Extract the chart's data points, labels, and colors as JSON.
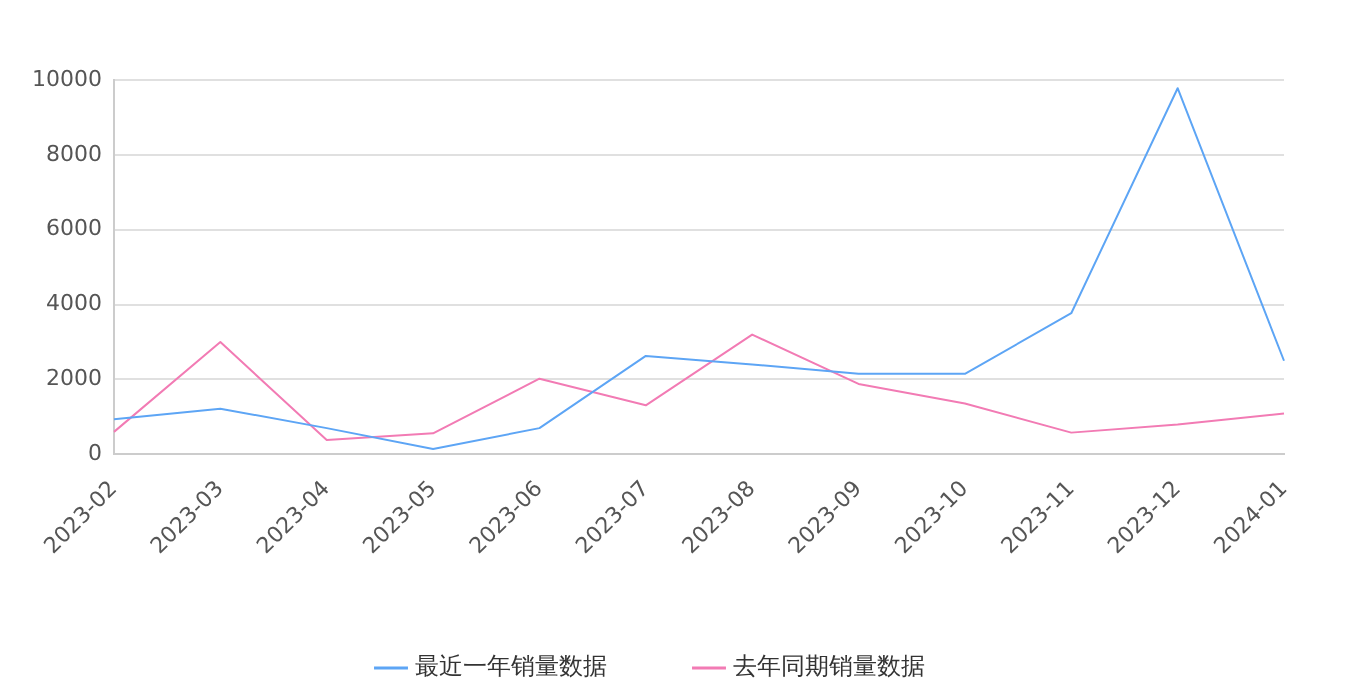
{
  "chart_data": {
    "type": "line",
    "categories": [
      "2023-02",
      "2023-03",
      "2023-04",
      "2023-05",
      "2023-06",
      "2023-07",
      "2023-08",
      "2023-09",
      "2023-10",
      "2023-11",
      "2023-12",
      "2024-01"
    ],
    "series": [
      {
        "name": "最近一年销量数据",
        "color": "#5da5f5",
        "values": [
          940,
          1220,
          700,
          140,
          700,
          2630,
          2400,
          2150,
          2150,
          3770,
          9780,
          2500
        ]
      },
      {
        "name": "去年同期销量数据",
        "color": "#f27bb4",
        "values": [
          600,
          3000,
          380,
          560,
          2020,
          1310,
          3200,
          1880,
          1360,
          580,
          800,
          1090
        ]
      }
    ],
    "ylim": [
      0,
      10000
    ],
    "yticks": [
      0,
      2000,
      4000,
      6000,
      8000,
      10000
    ],
    "grid": "y",
    "legend": "bottom",
    "marker": "none",
    "line_style": "solid"
  }
}
